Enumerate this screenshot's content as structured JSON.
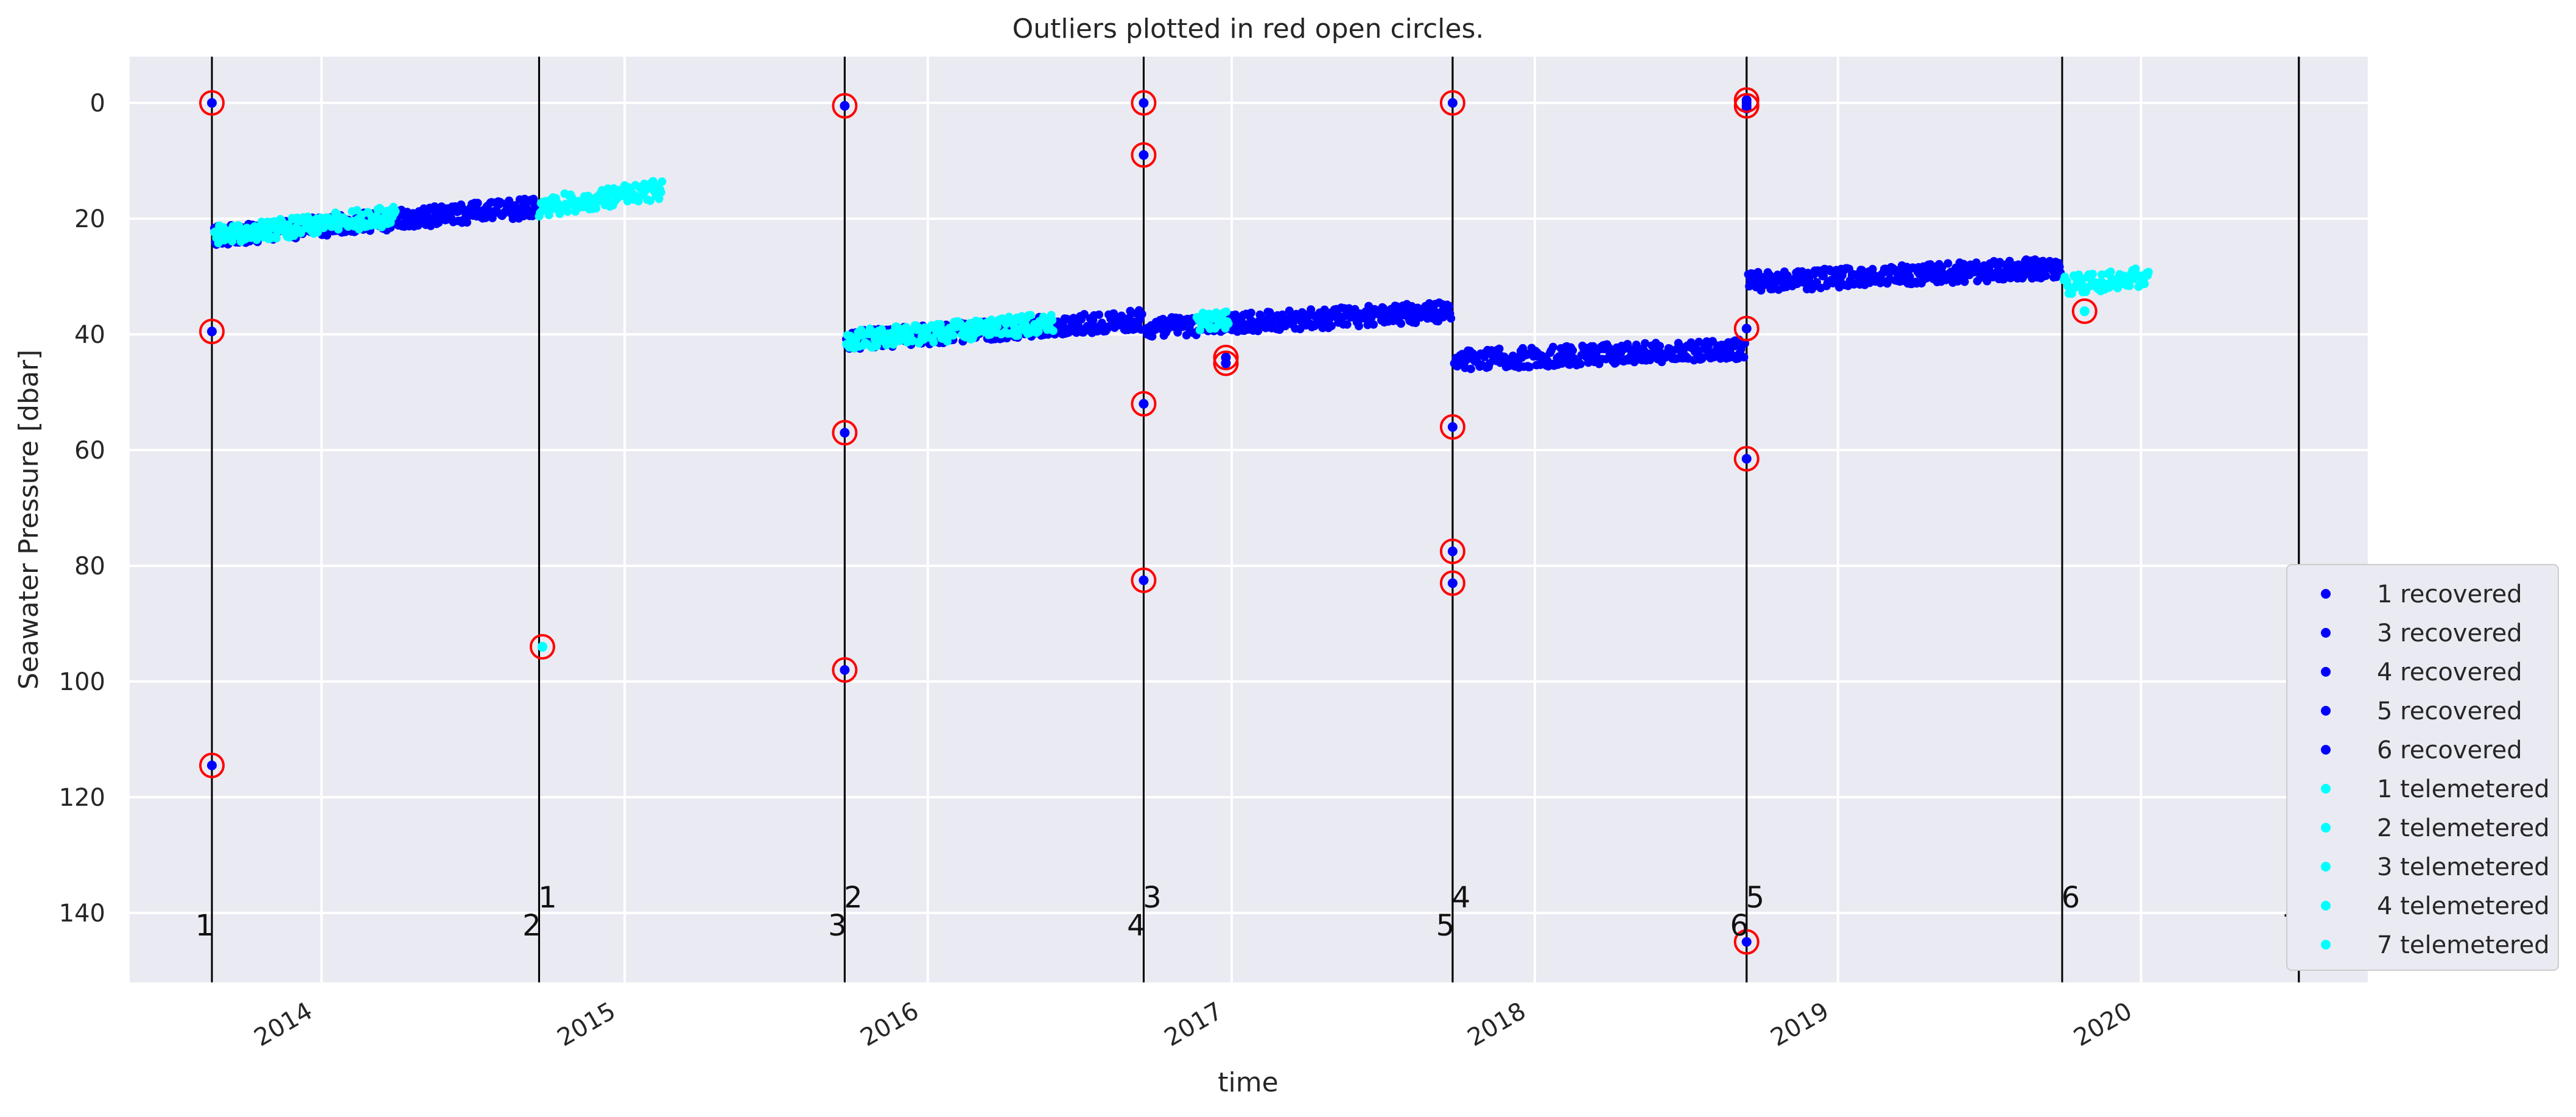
{
  "chart_data": {
    "type": "scatter",
    "title": "Outliers plotted in red open circles.",
    "xlabel": "time",
    "ylabel": "Seawater Pressure [dbar]",
    "y_inverted": true,
    "ylim": [
      152,
      -8
    ],
    "xlim": [
      "2013-05-15",
      "2020-09-30"
    ],
    "yticks": [
      0,
      20,
      40,
      60,
      80,
      100,
      120,
      140
    ],
    "xticks": [
      "2014-01-01",
      "2015-01-01",
      "2016-01-01",
      "2017-01-01",
      "2018-01-01",
      "2019-01-01",
      "2020-01-01"
    ],
    "xticklabels": [
      "2014",
      "2015",
      "2016",
      "2017",
      "2018",
      "2019",
      "2020"
    ],
    "grid": true,
    "legend_placement": "lower right (outside)",
    "colors": {
      "recovered": "#0000ff",
      "telemetered": "#00ffff",
      "outlier": "#ff0000",
      "deployment_line": "#000000",
      "plot_bg": "#eaeaf2",
      "grid": "#ffffff"
    },
    "deployments": {
      "recovered": [
        {
          "label": "1",
          "date": "2013-08-22"
        },
        {
          "label": "2",
          "date": "2014-09-20"
        },
        {
          "label": "3",
          "date": "2015-09-23"
        },
        {
          "label": "4",
          "date": "2016-09-17"
        },
        {
          "label": "5",
          "date": "2017-09-24"
        },
        {
          "label": "6",
          "date": "2018-09-13"
        },
        {
          "label": "7",
          "date": "2020-07-09"
        }
      ],
      "telemetered": [
        {
          "label": "1",
          "date": "2014-09-20"
        },
        {
          "label": "2",
          "date": "2015-09-23"
        },
        {
          "label": "3",
          "date": "2016-09-17"
        },
        {
          "label": "4",
          "date": "2017-09-24"
        },
        {
          "label": "5",
          "date": "2018-09-13"
        },
        {
          "label": "6",
          "date": "2019-09-28"
        },
        {
          "label": "7",
          "date": "2020-07-09"
        }
      ]
    },
    "series": [
      {
        "name": "1 recovered",
        "color": "#0000ff",
        "trend": [
          [
            "2013-08-25",
            23
          ],
          [
            "2014-09-18",
            18
          ]
        ]
      },
      {
        "name": "3 recovered",
        "color": "#0000ff",
        "trend": [
          [
            "2015-09-25",
            41
          ],
          [
            "2016-09-15",
            37.5
          ]
        ]
      },
      {
        "name": "4 recovered",
        "color": "#0000ff",
        "trend": [
          [
            "2016-09-19",
            39
          ],
          [
            "2017-09-22",
            36
          ]
        ]
      },
      {
        "name": "5 recovered",
        "color": "#0000ff",
        "trend": [
          [
            "2017-09-26",
            44.5
          ],
          [
            "2018-09-11",
            42.5
          ]
        ]
      },
      {
        "name": "6 recovered",
        "color": "#0000ff",
        "trend": [
          [
            "2018-09-15",
            31
          ],
          [
            "2019-09-26",
            28.5
          ]
        ]
      },
      {
        "name": "1 telemetered",
        "color": "#00ffff",
        "trend": [
          [
            "2013-08-25",
            23
          ],
          [
            "2014-03-31",
            19.5
          ]
        ]
      },
      {
        "name": "2 telemetered",
        "color": "#00ffff",
        "trend": [
          [
            "2014-09-20",
            18
          ],
          [
            "2015-02-15",
            15
          ]
        ]
      },
      {
        "name": "3 telemetered",
        "color": "#00ffff",
        "trend": [
          [
            "2015-09-25",
            41
          ],
          [
            "2016-05-31",
            38
          ]
        ]
      },
      {
        "name": "4 telemetered",
        "color": "#00ffff",
        "trend": [
          [
            "2016-11-20",
            38
          ],
          [
            "2016-12-28",
            37.5
          ]
        ]
      },
      {
        "name": "7 telemetered",
        "color": "#00ffff",
        "trend": [
          [
            "2019-09-30",
            31.5
          ],
          [
            "2020-01-10",
            30
          ]
        ]
      }
    ],
    "extra_points": [
      {
        "date": "2016-12-25",
        "y": 44,
        "color": "#0000ff"
      },
      {
        "date": "2016-12-25",
        "y": 45,
        "color": "#0000ff"
      },
      {
        "date": "2018-09-13",
        "y": 0,
        "color": "#0000ff"
      },
      {
        "date": "2018-09-13",
        "y": 1,
        "color": "#0000ff"
      },
      {
        "date": "2014-09-24",
        "y": 94,
        "color": "#00ffff"
      },
      {
        "date": "2019-10-25",
        "y": 36,
        "color": "#00ffff"
      }
    ],
    "outliers": [
      {
        "date": "2013-08-22",
        "y": 0,
        "color": "#0000ff"
      },
      {
        "date": "2013-08-22",
        "y": 39.5,
        "color": "#0000ff"
      },
      {
        "date": "2013-08-22",
        "y": 114.5,
        "color": "#0000ff"
      },
      {
        "date": "2014-09-24",
        "y": 94,
        "color": "#00ffff"
      },
      {
        "date": "2015-09-23",
        "y": 0.5,
        "color": "#0000ff"
      },
      {
        "date": "2015-09-23",
        "y": 57,
        "color": "#0000ff"
      },
      {
        "date": "2015-09-23",
        "y": 98,
        "color": "#0000ff"
      },
      {
        "date": "2016-09-17",
        "y": 0,
        "color": "#0000ff"
      },
      {
        "date": "2016-09-17",
        "y": 9,
        "color": "#0000ff"
      },
      {
        "date": "2016-09-17",
        "y": 52,
        "color": "#0000ff"
      },
      {
        "date": "2016-09-17",
        "y": 82.5,
        "color": "#0000ff"
      },
      {
        "date": "2016-12-25",
        "y": 44,
        "color": "#0000ff"
      },
      {
        "date": "2016-12-25",
        "y": 45,
        "color": "#0000ff"
      },
      {
        "date": "2017-09-24",
        "y": 0,
        "color": "#0000ff"
      },
      {
        "date": "2017-09-24",
        "y": 56,
        "color": "#0000ff"
      },
      {
        "date": "2017-09-24",
        "y": 77.5,
        "color": "#0000ff"
      },
      {
        "date": "2017-09-24",
        "y": 83,
        "color": "#0000ff"
      },
      {
        "date": "2018-09-13",
        "y": -0.5,
        "color": "#0000ff"
      },
      {
        "date": "2018-09-13",
        "y": 0.5,
        "color": "#0000ff"
      },
      {
        "date": "2018-09-13",
        "y": 39,
        "color": "#0000ff"
      },
      {
        "date": "2018-09-13",
        "y": 61.5,
        "color": "#0000ff"
      },
      {
        "date": "2018-09-13",
        "y": 145,
        "color": "#0000ff"
      },
      {
        "date": "2019-10-25",
        "y": 36,
        "color": "#00ffff"
      }
    ]
  }
}
